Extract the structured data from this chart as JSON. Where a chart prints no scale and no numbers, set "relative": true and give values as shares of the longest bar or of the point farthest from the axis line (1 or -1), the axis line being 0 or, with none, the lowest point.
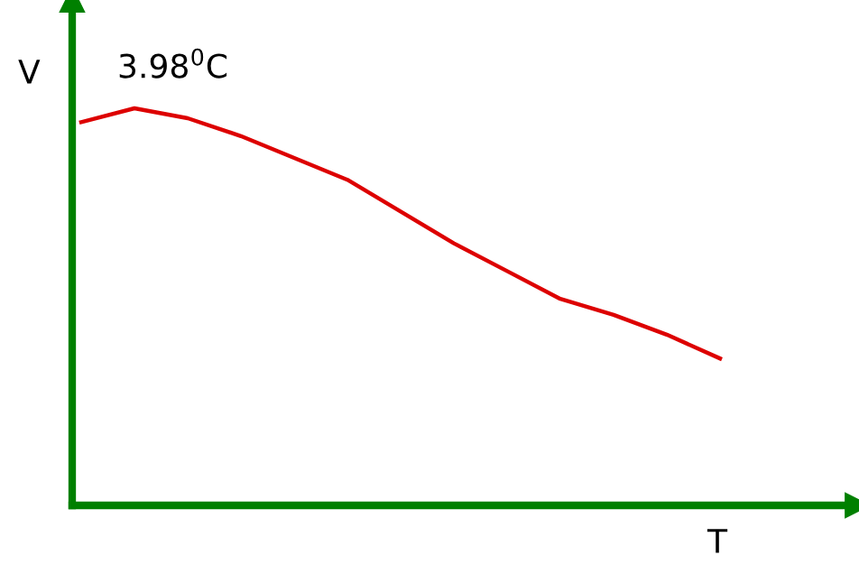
{
  "chart_data": {
    "type": "line",
    "relative": true,
    "xlabel": "T",
    "ylabel": "V",
    "annotations": [
      "3.98$^{0}$C"
    ],
    "categories": [
      null,
      null,
      null,
      null,
      null,
      null,
      null,
      null,
      null,
      null,
      null,
      null,
      null
    ],
    "series": [
      {
        "color": "#dd0000",
        "values": [
          0.965,
          1,
          0.975,
          0.93,
          0.875,
          0.82,
          0.74,
          0.66,
          0.59,
          0.52,
          0.48,
          0.43,
          0.37
        ]
      }
    ],
    "marker": "none",
    "line_style": "solid",
    "grid": false
  }
}
